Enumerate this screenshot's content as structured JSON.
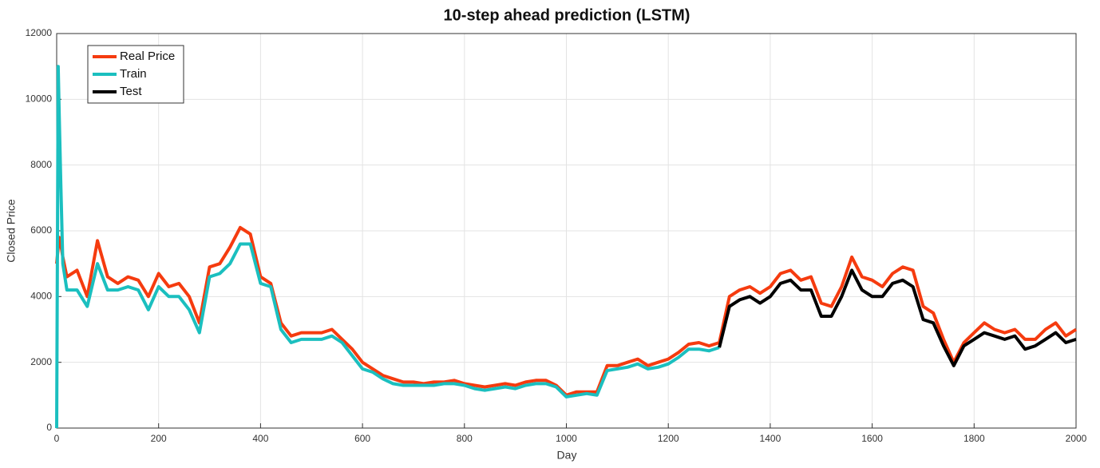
{
  "chart_data": {
    "type": "line",
    "title": "10-step ahead prediction (LSTM)",
    "x_label": "Day",
    "y_label": "Closed Price",
    "x": [
      0,
      3,
      5,
      8,
      12,
      20,
      40,
      60,
      80,
      100,
      120,
      140,
      160,
      180,
      200,
      220,
      240,
      260,
      280,
      300,
      320,
      340,
      360,
      380,
      400,
      420,
      440,
      460,
      480,
      500,
      520,
      540,
      560,
      580,
      600,
      620,
      640,
      660,
      680,
      700,
      720,
      740,
      760,
      780,
      800,
      820,
      840,
      860,
      880,
      900,
      920,
      940,
      960,
      980,
      1000,
      1020,
      1040,
      1060,
      1080,
      1100,
      1120,
      1140,
      1160,
      1180,
      1200,
      1220,
      1240,
      1260,
      1280,
      1300,
      1320,
      1340,
      1360,
      1380,
      1400,
      1420,
      1440,
      1460,
      1480,
      1500,
      1520,
      1540,
      1560,
      1580,
      1600,
      1620,
      1640,
      1660,
      1680,
      1700,
      1720,
      1740,
      1760,
      1780,
      1800,
      1820,
      1840,
      1860,
      1880,
      1900,
      1920,
      1940,
      1960,
      1980,
      2000
    ],
    "series": [
      {
        "name": "Real Price",
        "color": "#f53b0f",
        "values": [
          5000,
          5500,
          5800,
          5600,
          5200,
          4600,
          4800,
          4000,
          5700,
          4600,
          4400,
          4600,
          4500,
          4000,
          4700,
          4300,
          4400,
          4000,
          3200,
          4900,
          5000,
          5500,
          6100,
          5900,
          4600,
          4400,
          3200,
          2800,
          2900,
          2900,
          2900,
          3000,
          2700,
          2400,
          2000,
          1800,
          1600,
          1500,
          1400,
          1400,
          1350,
          1400,
          1400,
          1450,
          1350,
          1300,
          1250,
          1300,
          1350,
          1300,
          1400,
          1450,
          1450,
          1300,
          1000,
          1100,
          1100,
          1100,
          1900,
          1900,
          2000,
          2100,
          1900,
          2000,
          2100,
          2300,
          2550,
          2600,
          2500,
          2600,
          4000,
          4200,
          4300,
          4100,
          4300,
          4700,
          4800,
          4500,
          4600,
          3800,
          3700,
          4300,
          5200,
          4600,
          4500,
          4300,
          4700,
          4900,
          4800,
          3700,
          3500,
          2700,
          2000,
          2600,
          2900,
          3200,
          3000,
          2900,
          3000,
          2700,
          2700,
          3000,
          3200,
          2800,
          3000
        ]
      },
      {
        "name": "Train",
        "color": "#1bbfbf",
        "values": [
          0,
          11000,
          9500,
          7500,
          5000,
          4200,
          4200,
          3700,
          5000,
          4200,
          4200,
          4300,
          4200,
          3600,
          4300,
          4000,
          4000,
          3600,
          2900,
          4600,
          4700,
          5000,
          5600,
          5600,
          4400,
          4300,
          3000,
          2600,
          2700,
          2700,
          2700,
          2800,
          2600,
          2200,
          1800,
          1700,
          1500,
          1350,
          1300,
          1300,
          1300,
          1300,
          1350,
          1350,
          1300,
          1200,
          1150,
          1200,
          1250,
          1200,
          1300,
          1350,
          1350,
          1250,
          950,
          1000,
          1050,
          1000,
          1750,
          1800,
          1850,
          1950,
          1800,
          1850,
          1950,
          2150,
          2400,
          2400,
          2350,
          2450,
          null,
          null,
          null,
          null,
          null,
          null,
          null,
          null,
          null,
          null,
          null,
          null,
          null,
          null,
          null,
          null,
          null,
          null,
          null,
          null,
          null,
          null,
          null,
          null,
          null,
          null,
          null,
          null,
          null,
          null,
          null,
          null,
          null,
          null,
          null
        ]
      },
      {
        "name": "Test",
        "color": "#000000",
        "values": [
          null,
          null,
          null,
          null,
          null,
          null,
          null,
          null,
          null,
          null,
          null,
          null,
          null,
          null,
          null,
          null,
          null,
          null,
          null,
          null,
          null,
          null,
          null,
          null,
          null,
          null,
          null,
          null,
          null,
          null,
          null,
          null,
          null,
          null,
          null,
          null,
          null,
          null,
          null,
          null,
          null,
          null,
          null,
          null,
          null,
          null,
          null,
          null,
          null,
          null,
          null,
          null,
          null,
          null,
          null,
          null,
          null,
          null,
          null,
          null,
          null,
          null,
          null,
          null,
          null,
          null,
          null,
          null,
          null,
          2450,
          3700,
          3900,
          4000,
          3800,
          4000,
          4400,
          4500,
          4200,
          4200,
          3400,
          3400,
          4000,
          4800,
          4200,
          4000,
          4000,
          4400,
          4500,
          4300,
          3300,
          3200,
          2500,
          1900,
          2500,
          2700,
          2900,
          2800,
          2700,
          2800,
          2400,
          2500,
          2700,
          2900,
          2600,
          2700
        ]
      }
    ],
    "xlim": [
      0,
      2000
    ],
    "xticks": [
      0,
      200,
      400,
      600,
      800,
      1000,
      1200,
      1400,
      1600,
      1800,
      2000
    ],
    "ylim": [
      0,
      12000
    ],
    "yticks": [
      0,
      2000,
      4000,
      6000,
      8000,
      10000,
      12000
    ],
    "grid": true,
    "legend": "upper left"
  }
}
